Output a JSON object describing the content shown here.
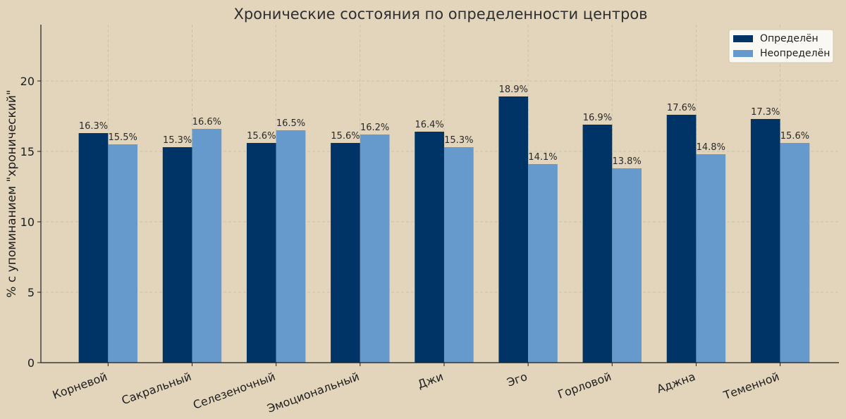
{
  "chart_data": {
    "type": "bar",
    "title": "Хронические состояния по определенности центров",
    "xlabel": "",
    "ylabel": "% с упоминанием \"хронический\"",
    "categories": [
      "Корневой",
      "Сакральный",
      "Селезеночный",
      "Эмоциональный",
      "Джи",
      "Эго",
      "Горловой",
      "Аджна",
      "Теменной"
    ],
    "series": [
      {
        "name": "Определён",
        "color": "#003366",
        "values": [
          16.3,
          15.3,
          15.6,
          15.6,
          16.4,
          18.9,
          16.9,
          17.6,
          17.3
        ],
        "labels": [
          "16.3%",
          "15.3%",
          "15.6%",
          "15.6%",
          "16.4%",
          "18.9%",
          "16.9%",
          "17.6%",
          "17.3%"
        ]
      },
      {
        "name": "Неопределён",
        "color": "#6699cc",
        "values": [
          15.5,
          16.6,
          16.5,
          16.2,
          15.3,
          14.1,
          13.8,
          14.8,
          15.6
        ],
        "labels": [
          "15.5%",
          "16.6%",
          "16.5%",
          "16.2%",
          "15.3%",
          "14.1%",
          "13.8%",
          "14.8%",
          "15.6%"
        ]
      }
    ],
    "ylim": [
      0,
      24
    ],
    "yticks": [
      0,
      5,
      10,
      15,
      20
    ],
    "grid": true,
    "legend": "top-right"
  }
}
